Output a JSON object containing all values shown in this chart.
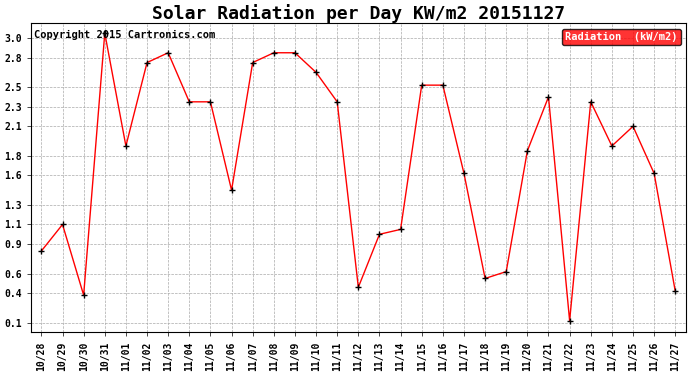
{
  "title": "Solar Radiation per Day KW/m2 20151127",
  "copyright": "Copyright 2015 Cartronics.com",
  "legend_label": "Radiation  (kW/m2)",
  "x_labels": [
    "10/28",
    "10/29",
    "10/30",
    "10/31",
    "11/01",
    "11/02",
    "11/03",
    "11/04",
    "11/05",
    "11/06",
    "11/07",
    "11/08",
    "11/09",
    "11/10",
    "11/11",
    "11/12",
    "11/13",
    "11/14",
    "11/15",
    "11/16",
    "11/17",
    "11/18",
    "11/19",
    "11/20",
    "11/21",
    "11/22",
    "11/23",
    "11/24",
    "11/25",
    "11/26",
    "11/27"
  ],
  "y_values": [
    0.83,
    1.1,
    0.38,
    3.05,
    1.9,
    2.75,
    2.85,
    2.35,
    2.35,
    1.45,
    2.75,
    2.85,
    2.85,
    2.65,
    2.35,
    0.46,
    1.0,
    1.05,
    2.52,
    2.52,
    1.62,
    0.55,
    0.62,
    1.85,
    2.4,
    0.12,
    2.35,
    1.9,
    2.1,
    1.62,
    0.42
  ],
  "line_color": "red",
  "marker_color": "black",
  "marker": "+",
  "background_color": "#ffffff",
  "grid_color": "#aaaaaa",
  "legend_bg": "red",
  "legend_text_color": "white",
  "ylim": [
    0.0,
    3.15
  ],
  "ytick_vals": [
    0.1,
    0.4,
    0.6,
    0.9,
    1.1,
    1.3,
    1.6,
    1.8,
    2.1,
    2.3,
    2.5,
    2.8,
    3.0
  ],
  "ytick_labels": [
    "0.1",
    "0.4",
    "0.6",
    "0.9",
    "1.1",
    "1.3",
    "1.6",
    "1.8",
    "2.1",
    "2.3",
    "2.5",
    "2.8",
    "3.0"
  ],
  "title_fontsize": 13,
  "copyright_fontsize": 7.5
}
